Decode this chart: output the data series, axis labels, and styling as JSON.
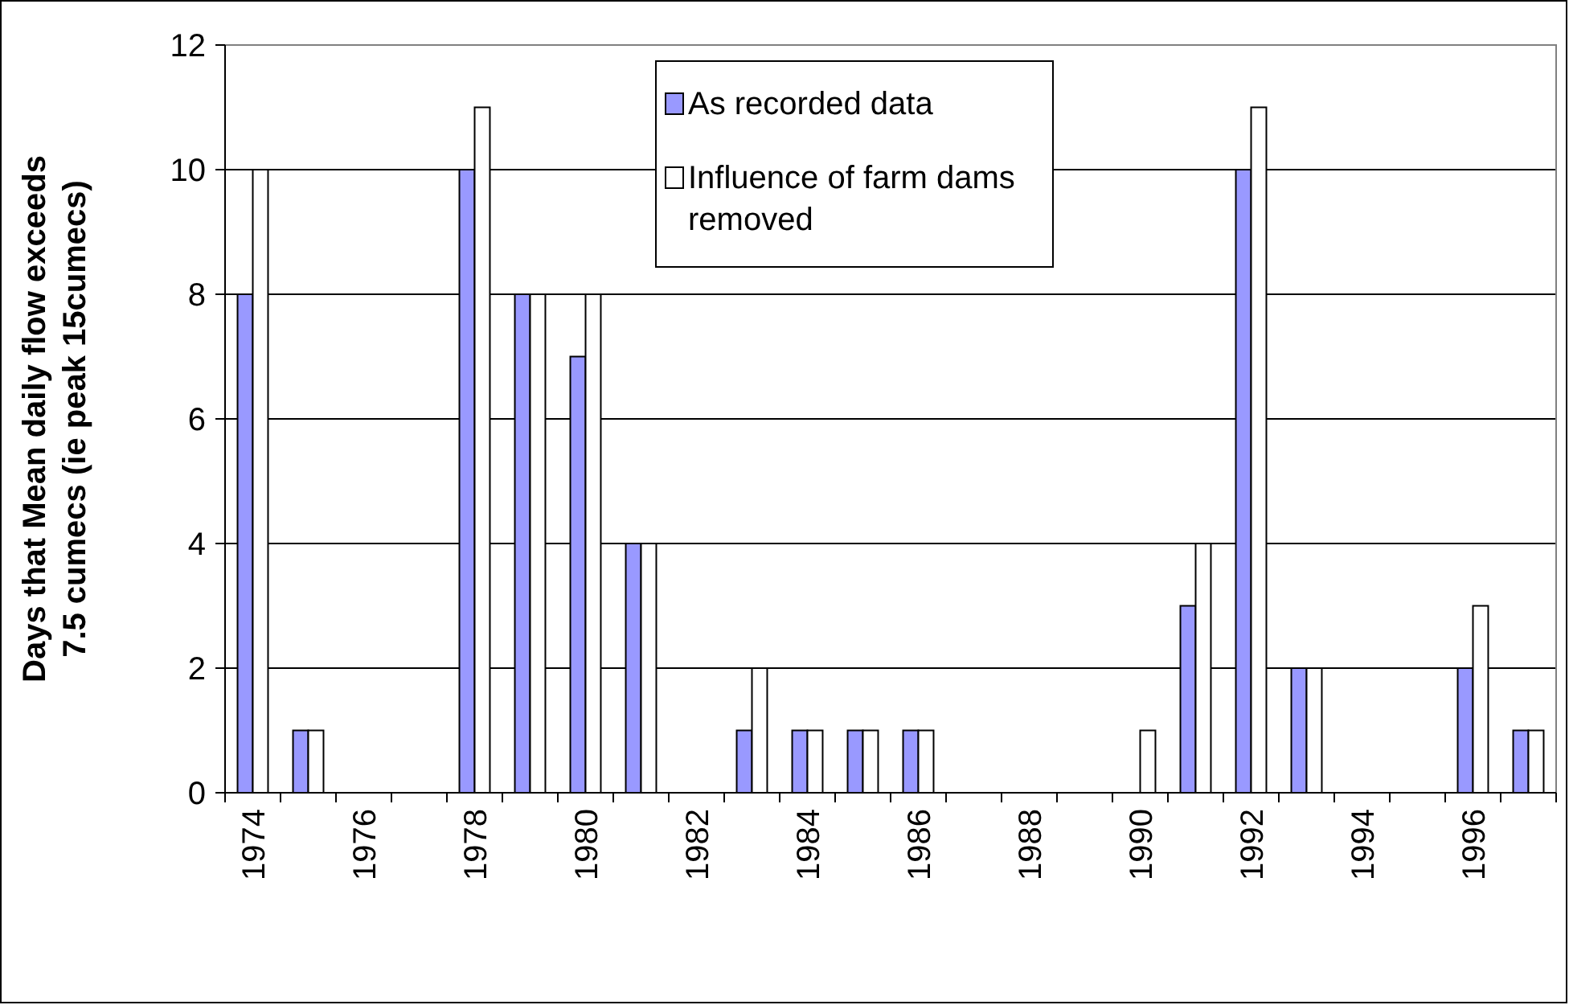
{
  "chart_data": {
    "type": "bar",
    "ylabel": "Days that Mean daily flow exceeds 7.5 cumecs (ie peak 15cumecs)",
    "categories": [
      "1974",
      null,
      "1976",
      null,
      "1978",
      null,
      "1980",
      null,
      "1982",
      null,
      "1984",
      null,
      "1986",
      null,
      "1988",
      null,
      "1990",
      null,
      "1992",
      null,
      "1994",
      null,
      "1996",
      null
    ],
    "series": [
      {
        "name": "As recorded data",
        "color": "#9999ff",
        "values": [
          8,
          1,
          0,
          0,
          10,
          8,
          7,
          4,
          0,
          1,
          1,
          1,
          1,
          0,
          0,
          0,
          0,
          3,
          10,
          2,
          0,
          0,
          2,
          1
        ]
      },
      {
        "name": "Influence of farm dams removed",
        "color": "#ffffff",
        "values": [
          10,
          1,
          0,
          0,
          11,
          8,
          8,
          4,
          0,
          2,
          1,
          1,
          1,
          0,
          0,
          0,
          1,
          4,
          11,
          2,
          0,
          0,
          3,
          1
        ]
      }
    ],
    "ylim": [
      0,
      12
    ],
    "yticks": [
      0,
      2,
      4,
      6,
      8,
      10,
      12
    ],
    "grid": "y",
    "legend": "top"
  }
}
